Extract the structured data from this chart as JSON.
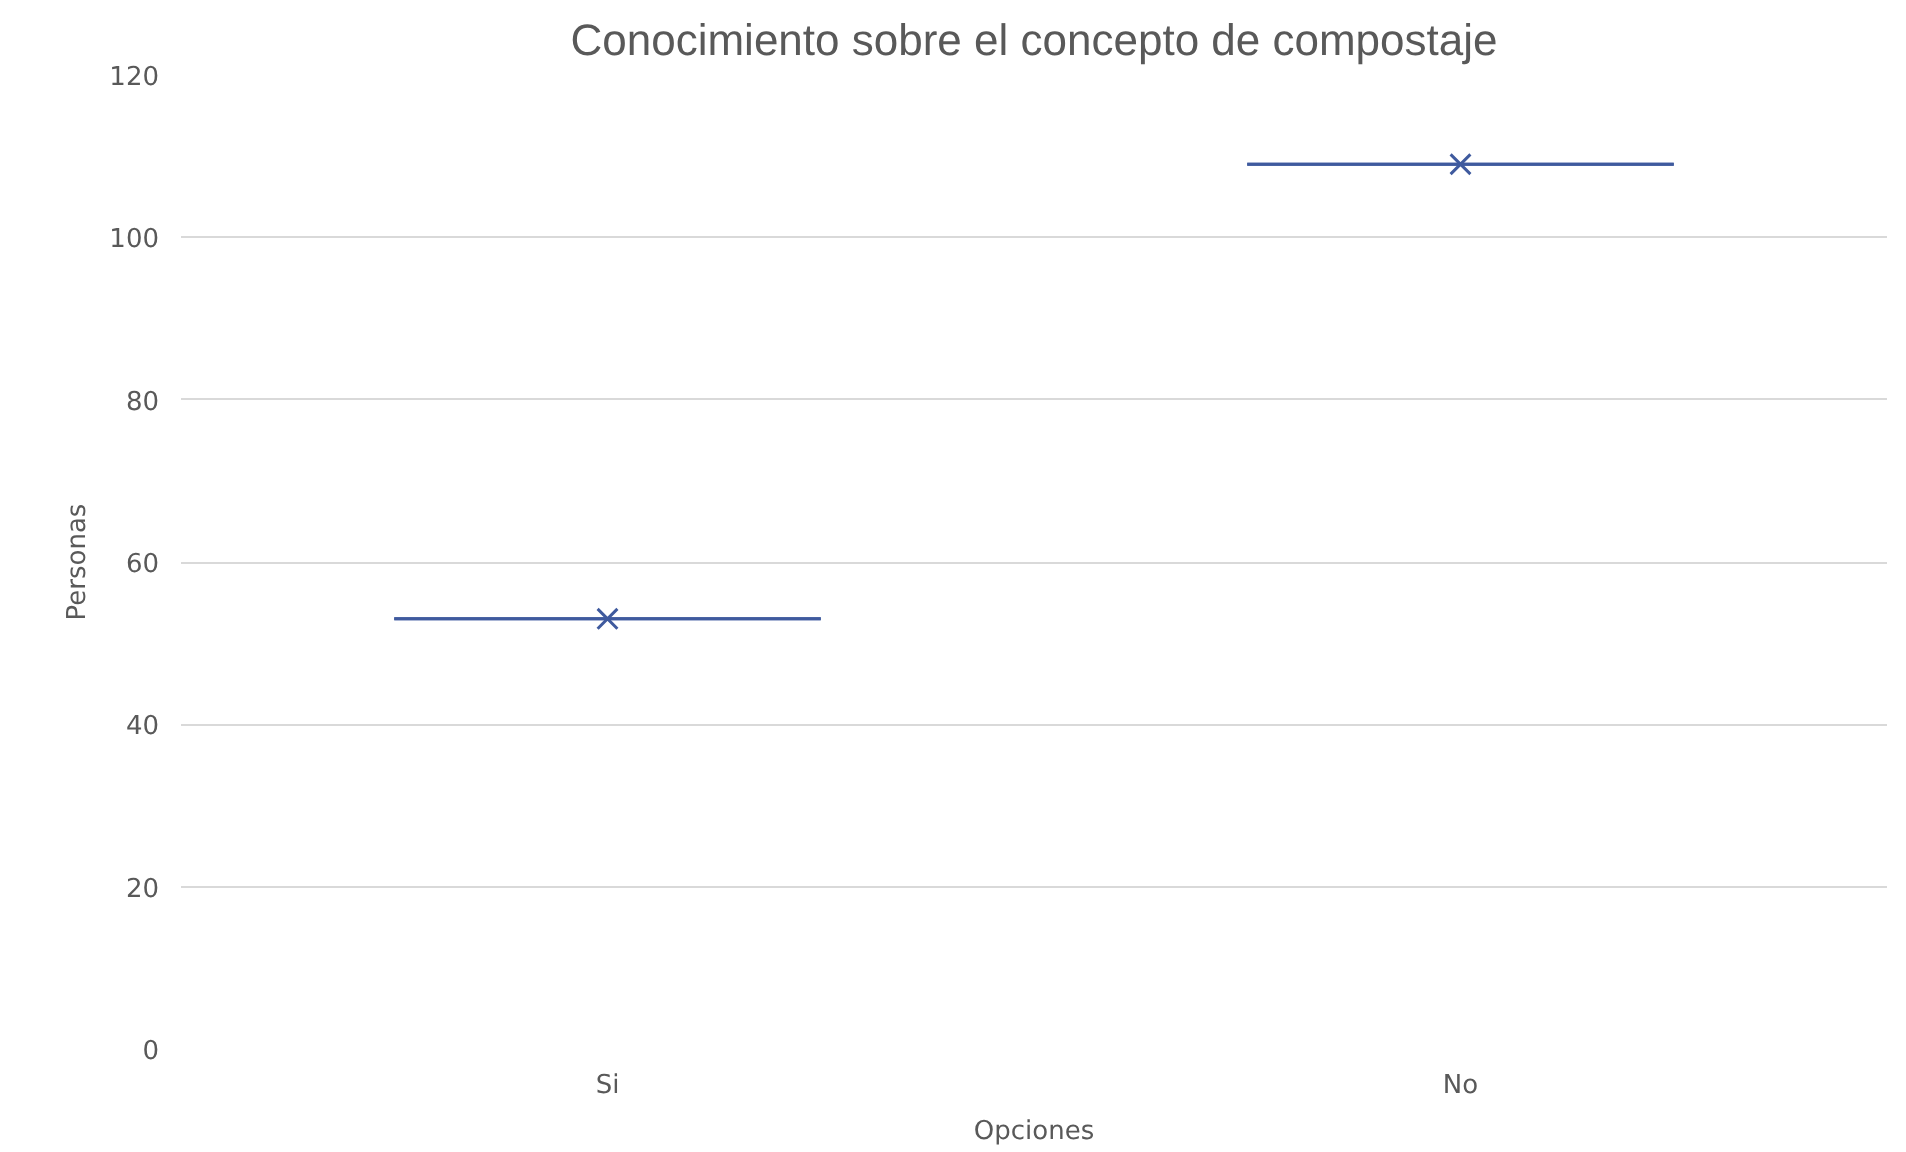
{
  "chart_data": {
    "type": "box",
    "title": "Conocimiento sobre el concepto de compostaje",
    "xlabel": "Opciones",
    "ylabel": "Personas",
    "categories": [
      "Si",
      "No"
    ],
    "series": [
      {
        "color": "#3f5a9e",
        "boxes": [
          {
            "low": 53,
            "q1": 53,
            "median": 53,
            "q3": 53,
            "high": 53,
            "mean": 53
          },
          {
            "low": 109,
            "q1": 109,
            "median": 109,
            "q3": 109,
            "high": 109,
            "mean": 109
          }
        ]
      }
    ],
    "ylim": [
      0,
      120
    ],
    "yticks": [
      0,
      20,
      40,
      60,
      80,
      100,
      120
    ],
    "grid": "y",
    "marker": "cross"
  }
}
